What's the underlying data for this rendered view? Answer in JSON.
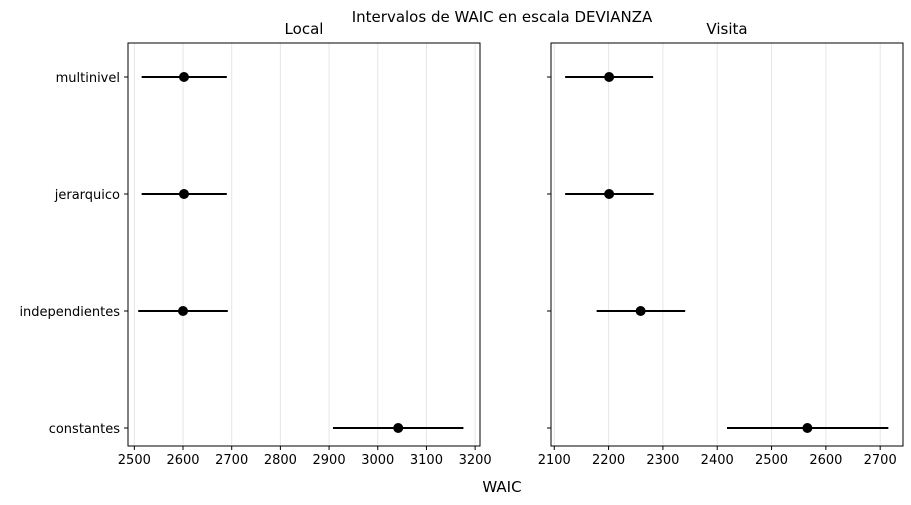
{
  "suptitle": "Intervalos de WAIC en escala DEVIANZA",
  "xlabel": "WAIC",
  "chart_data": [
    {
      "type": "scatter",
      "title": "Local",
      "categories": [
        "multinivel",
        "jerarquico",
        "independientes",
        "constantes"
      ],
      "x": [
        2602,
        2602,
        2600,
        3042
      ],
      "x_low": [
        2515,
        2515,
        2508,
        2908
      ],
      "x_high": [
        2690,
        2690,
        2692,
        3176
      ],
      "xlim": [
        2487,
        3210
      ],
      "xticks": [
        2500,
        2600,
        2700,
        2800,
        2900,
        3000,
        3100,
        3200
      ],
      "grid": "x",
      "color": "#000000"
    },
    {
      "type": "scatter",
      "title": "Visita",
      "categories": [
        "multinivel",
        "jerarquico",
        "independientes",
        "constantes"
      ],
      "x": [
        2201,
        2201,
        2259,
        2566
      ],
      "x_low": [
        2120,
        2120,
        2178,
        2418
      ],
      "x_high": [
        2282,
        2283,
        2341,
        2715
      ],
      "xlim": [
        2094,
        2742
      ],
      "xticks": [
        2100,
        2200,
        2300,
        2400,
        2500,
        2600,
        2700
      ],
      "grid": "x",
      "color": "#000000"
    }
  ]
}
